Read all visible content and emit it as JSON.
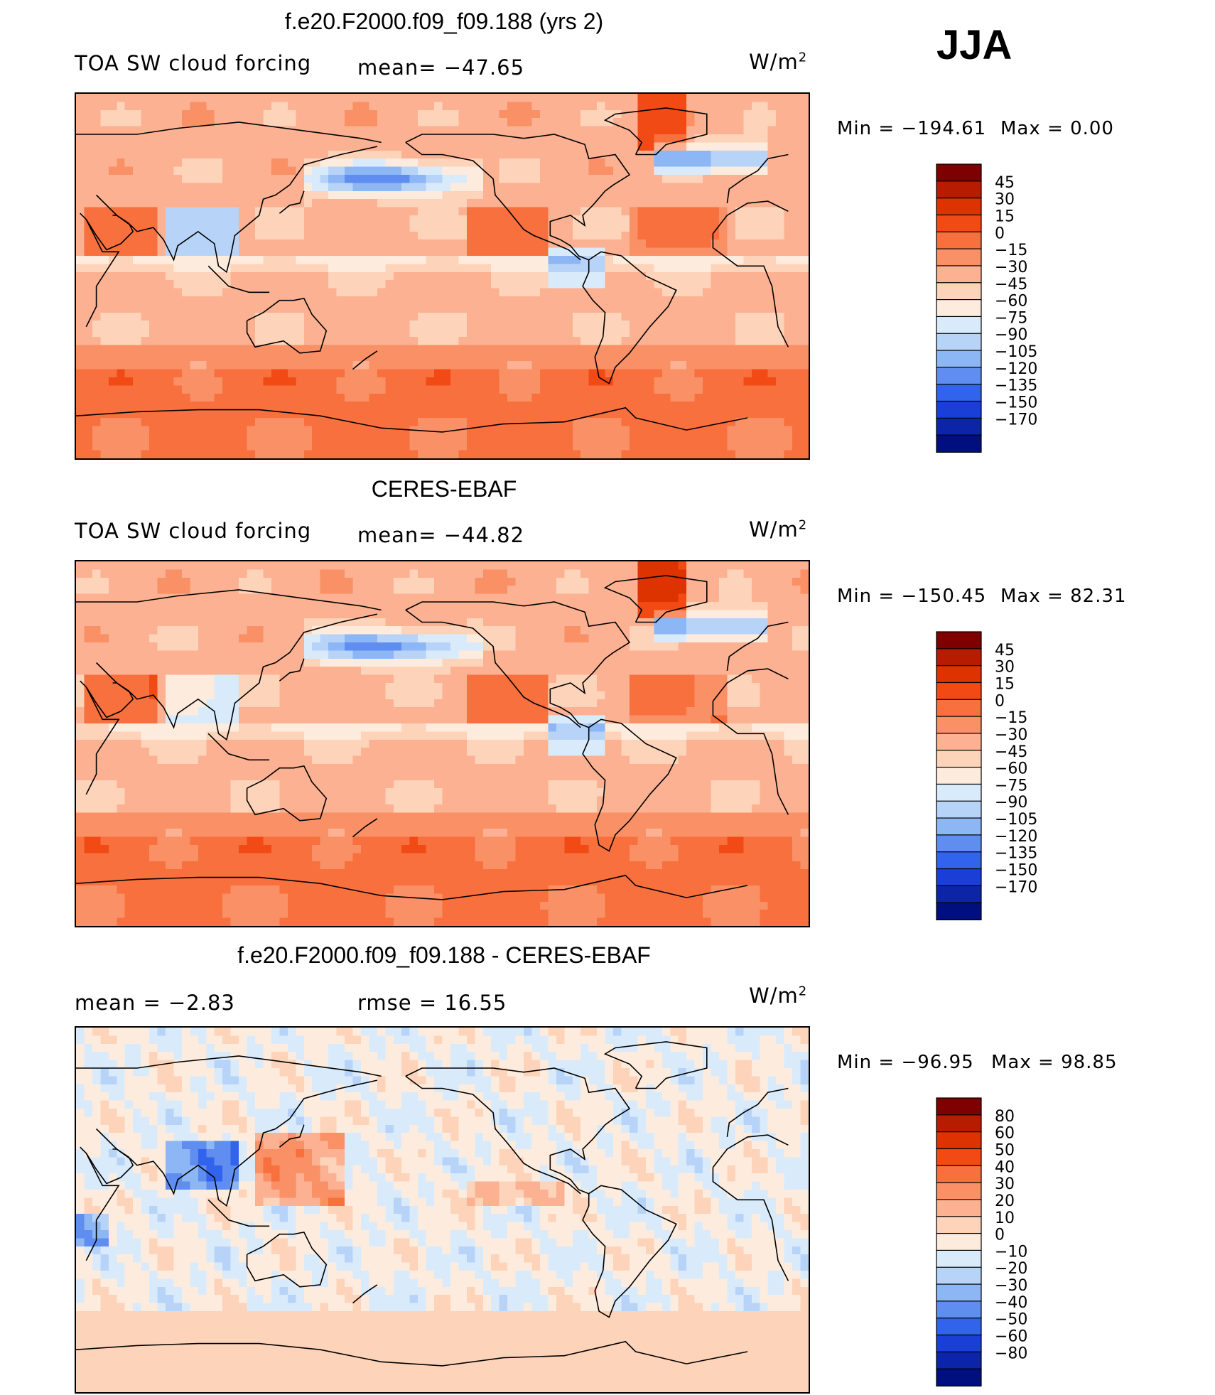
{
  "season": "JJA",
  "units_main": "W/m",
  "units_sup": "2",
  "panels": [
    {
      "title": "f.e20.F2000.f09_f09.188 (yrs 2)",
      "left_label": "TOA SW cloud forcing",
      "mid_label": "mean= −47.65",
      "min_label": "Min = −194.61",
      "max_label": "Max =    0.00",
      "palette": "abs"
    },
    {
      "title": "CERES-EBAF",
      "left_label": "TOA SW cloud forcing",
      "mid_label": "mean= −44.82",
      "min_label": "Min = −150.45",
      "max_label": "Max =   82.31",
      "palette": "abs"
    },
    {
      "title": "f.e20.F2000.f09_f09.188 - CERES-EBAF",
      "left_label": "mean =   −2.83",
      "mid_label": "rmse =   16.55",
      "min_label": "Min = −96.95",
      "max_label": "Max =  98.85",
      "palette": "diff"
    }
  ],
  "colorbars": {
    "abs": {
      "labels": [
        "45",
        "30",
        "15",
        "0",
        "−15",
        "−30",
        "−45",
        "−60",
        "−75",
        "−90",
        "−105",
        "−120",
        "−135",
        "−150",
        "−170"
      ],
      "colors": [
        "#7f0000",
        "#b81c00",
        "#dd3300",
        "#f24a14",
        "#f7703e",
        "#f99066",
        "#fbb192",
        "#fdd3b9",
        "#fdecdd",
        "#d9ebfb",
        "#b7d4f8",
        "#8db6f4",
        "#5f8ef0",
        "#3163ec",
        "#1a3fd6",
        "#0b24a8",
        "#000f80"
      ]
    },
    "diff": {
      "labels": [
        "80",
        "60",
        "50",
        "40",
        "30",
        "20",
        "10",
        "0",
        "−10",
        "−20",
        "−30",
        "−40",
        "−50",
        "−60",
        "−80"
      ],
      "colors": [
        "#7f0000",
        "#b81c00",
        "#dd3300",
        "#f24a14",
        "#f7703e",
        "#f99066",
        "#fbb192",
        "#fdd3b9",
        "#fdecdd",
        "#d9ebfb",
        "#b7d4f8",
        "#8db6f4",
        "#5f8ef0",
        "#3163ec",
        "#1a3fd6",
        "#0b24a8",
        "#000f80"
      ]
    }
  },
  "chart_data": [
    {
      "type": "heatmap",
      "title": "f.e20.F2000.f09_f09.188 (yrs 2)",
      "variable": "TOA SW cloud forcing",
      "units": "W/m2",
      "mean": -47.65,
      "min": -194.61,
      "max": 0.0,
      "contour_levels": [
        -170,
        -150,
        -135,
        -120,
        -105,
        -90,
        -75,
        -60,
        -45,
        -30,
        -15,
        0,
        15,
        30,
        45
      ]
    },
    {
      "type": "heatmap",
      "title": "CERES-EBAF",
      "variable": "TOA SW cloud forcing",
      "units": "W/m2",
      "mean": -44.82,
      "min": -150.45,
      "max": 82.31,
      "contour_levels": [
        -170,
        -150,
        -135,
        -120,
        -105,
        -90,
        -75,
        -60,
        -45,
        -30,
        -15,
        0,
        15,
        30,
        45
      ]
    },
    {
      "type": "heatmap",
      "title": "f.e20.F2000.f09_f09.188 - CERES-EBAF",
      "units": "W/m2",
      "mean": -2.83,
      "rmse": 16.55,
      "min": -96.95,
      "max": 98.85,
      "contour_levels": [
        -80,
        -60,
        -50,
        -40,
        -30,
        -20,
        -10,
        0,
        10,
        20,
        30,
        40,
        50,
        60,
        80
      ]
    }
  ]
}
